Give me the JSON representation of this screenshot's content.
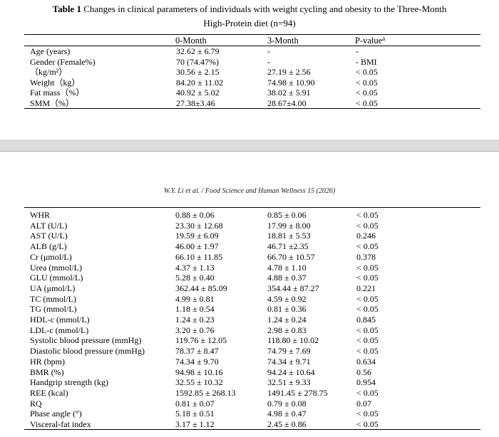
{
  "caption": {
    "label": "Table 1",
    "text": "Changes in clinical parameters of individuals with weight cycling and obesity to the Three-Month",
    "line2": "High-Protein diet (n=94)"
  },
  "table1": {
    "headers": [
      "0-Month",
      "3-Month",
      "P-value"
    ],
    "pvalue_sup": "a",
    "rows": [
      [
        "Age (years)",
        "32.62 ± 6.79",
        "-",
        "-"
      ],
      [
        "Gender (Female%)",
        "70 (74.47%)",
        "-",
        "- BMI"
      ],
      [
        "（kg/m²）",
        "30.56 ± 2.15",
        "27.19 ± 2.56",
        "< 0.05"
      ],
      [
        "Weight（kg）",
        "84.20 ± 11.02",
        "74.98 ± 10.90",
        "< 0.05"
      ],
      [
        "Fat mass（%）",
        "40.92 ± 5.02",
        "38.02 ± 5.91",
        "< 0.05"
      ],
      [
        "SMM（%）",
        "27.38±3.46",
        "28.67±4.00",
        "< 0.05"
      ]
    ]
  },
  "running_header": "W.Y. Li et al. / Food Science and Human Wellness 15 (2026)",
  "table2": {
    "rows": [
      [
        "WHR",
        "0.88 ± 0.06",
        "0.85 ± 0.06",
        "< 0.05"
      ],
      [
        "ALT (U/L)",
        "23.30 ± 12.68",
        "17.99 ± 8.00",
        "< 0.05"
      ],
      [
        "AST (U/L)",
        "19.59 ± 6.09",
        "18.81 ± 5.53",
        "0.246"
      ],
      [
        "ALB (g/L)",
        "46.00 ± 1.97",
        "46.71 ±2.35",
        "< 0.05"
      ],
      [
        "Cr (μmol/L)",
        "66.10 ± 11.85",
        "66.70 ± 10.57",
        "0.378"
      ],
      [
        "Urea (mmol/L)",
        "4.37 ± 1.13",
        "4.78 ± 1.10",
        "< 0.05"
      ],
      [
        "GLU (mmol/L)",
        "5.28 ± 0.40",
        "4.88 ± 0.37",
        "< 0.05"
      ],
      [
        "UA (μmol/L)",
        "362.44 ± 85.09",
        "354.44 ± 87.27",
        "0.221"
      ],
      [
        "TC (mmol/L)",
        "4.99 ± 0.81",
        "4.59 ± 0.92",
        "< 0.05"
      ],
      [
        "TG (mmol/L)",
        "1.18 ± 0.54",
        "0.81 ± 0.36",
        "< 0.05"
      ],
      [
        "HDL-c (mmol/L)",
        "1.24 ± 0.23",
        "1.24 ± 0.24",
        "0.845"
      ],
      [
        "LDL-c (mmol/L)",
        "3.20 ± 0.76",
        "2.98 ± 0.83",
        "< 0.05"
      ],
      [
        "Systolic blood pressure (mmHg)",
        "119.76 ± 12.05",
        "118.80 ± 10.02",
        "< 0.05"
      ],
      [
        "Diastolic blood pressure (mmHg)",
        "78.37 ± 8.47",
        "74.79 ± 7.69",
        "< 0.05"
      ],
      [
        "HR (bpm)",
        "74.34 ± 9.70",
        "74.34 ± 9.71",
        "0.634"
      ],
      [
        "BMR (%)",
        "94.98 ± 10.16",
        "94.24 ± 10.64",
        "0.56"
      ],
      [
        "Handgrip strength (kg)",
        "32.55 ± 10.32",
        "32.51 ± 9.33",
        "0.954"
      ],
      [
        "REE (kcal)",
        "1592.85 ± 268.13",
        "1491.45 ± 278.75",
        "< 0.05"
      ],
      [
        "RQ",
        "0.81 ± 0.07",
        "0.79 ± 0.08",
        "0.07"
      ],
      [
        "Phase angle (°)",
        "5.18 ± 0.51",
        "4.98 ± 0.47",
        "< 0.05"
      ],
      [
        "Visceral-fat index",
        "3.17 ± 1.12",
        "2.45 ± 0.86",
        "< 0.05"
      ]
    ]
  }
}
